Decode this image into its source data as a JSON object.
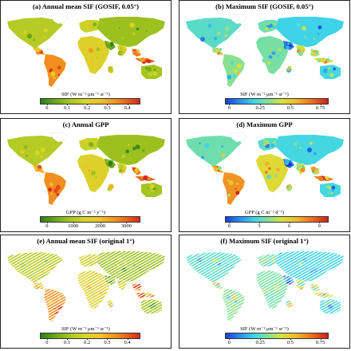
{
  "panels": [
    {
      "title": "(a) Annual mean SIF (GOSIF, 0.05°)",
      "legend": "SIF (W m⁻² μm⁻¹ sr⁻¹)",
      "ticks": [
        "0",
        "0.1",
        "0.2",
        "0.3",
        "0.4"
      ],
      "tick_pos": [
        0.07,
        0.27,
        0.47,
        0.67,
        0.87
      ],
      "palette": "sif",
      "style": "smooth",
      "map_mode": "mean"
    },
    {
      "title": "(b) Maximum SIF (GOSIF, 0.05°)",
      "legend": "SIF (W m⁻² μm⁻¹ sr⁻¹)",
      "ticks": [
        "0",
        "0.25",
        "0.5",
        "0.75"
      ],
      "tick_pos": [
        0.04,
        0.34,
        0.63,
        0.92
      ],
      "palette": "max",
      "style": "smooth",
      "map_mode": "max"
    },
    {
      "title": "(c) Annual GPP",
      "legend": "GPP (g C m⁻² y⁻¹)",
      "ticks": [
        "0",
        "1000",
        "2000",
        "3000"
      ],
      "tick_pos": [
        0.07,
        0.33,
        0.6,
        0.86
      ],
      "palette": "sif",
      "style": "smooth",
      "map_mode": "mean"
    },
    {
      "title": "(d) Maximum GPP",
      "legend": "GPP (g C m⁻² d⁻¹)",
      "ticks": [
        "0",
        "3",
        "6",
        "9"
      ],
      "tick_pos": [
        0.04,
        0.33,
        0.62,
        0.91
      ],
      "palette": "max",
      "style": "smooth",
      "map_mode": "maxgpp"
    },
    {
      "title": "(e) Annual mean SIF (original 1°)",
      "legend": "SIF (W m⁻² μm⁻¹ sr⁻¹)",
      "ticks": [
        "0",
        "0.1",
        "0.2",
        "0.3",
        "0.4"
      ],
      "tick_pos": [
        0.07,
        0.27,
        0.47,
        0.67,
        0.87
      ],
      "palette": "sif",
      "style": "hatched",
      "map_mode": "mean"
    },
    {
      "title": "(f) Maximum SIF (original 1°)",
      "legend": "SIF (W m⁻² μm⁻¹ sr⁻¹)",
      "ticks": [
        "0",
        "0.25",
        "0.5",
        "0.75"
      ],
      "tick_pos": [
        0.04,
        0.34,
        0.63,
        0.92
      ],
      "palette": "max",
      "style": "hatched",
      "map_mode": "max"
    }
  ],
  "colors": {
    "border": "#222222",
    "sif_low": "#2e7d1a",
    "sif_mid": "#d6d62a",
    "sif_high": "#d9291b",
    "max_low": "#1a3fd6",
    "max_mid": "#7be0a0",
    "max_high": "#c9211a"
  }
}
